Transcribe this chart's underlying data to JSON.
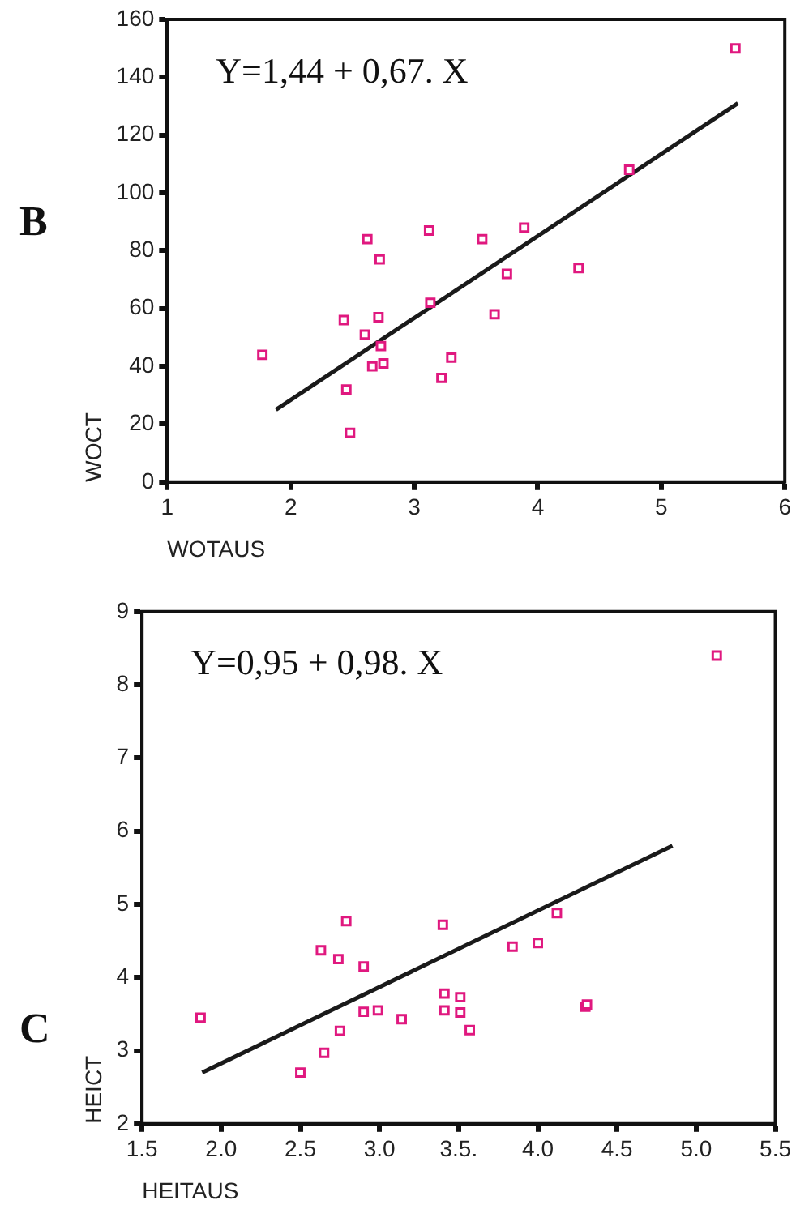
{
  "chart_data": [
    {
      "type": "scatter",
      "title": "B",
      "xlabel": "WOTAUS",
      "ylabel": "WOCT",
      "annotations": [
        "Y=1,44 + 0,67. X"
      ],
      "xlim": [
        1,
        6
      ],
      "xticks": [
        1,
        2,
        3,
        4,
        5,
        6
      ],
      "ylim": [
        0,
        160
      ],
      "yticks": [
        0,
        20,
        40,
        60,
        80,
        100,
        120,
        140,
        160
      ],
      "grid": false,
      "legend": false,
      "series": [
        {
          "color": "#e0187f",
          "marker": "square",
          "x": [
            1.77,
            2.43,
            2.45,
            2.48,
            2.6,
            2.62,
            2.66,
            2.71,
            2.72,
            2.73,
            2.75,
            3.12,
            3.13,
            3.22,
            3.3,
            3.55,
            3.65,
            3.75,
            3.89,
            4.33,
            4.74,
            5.6
          ],
          "values": [
            44,
            56,
            32,
            17,
            51,
            84,
            40,
            57,
            77,
            47,
            41,
            87,
            62,
            36,
            43,
            84,
            58,
            72,
            88,
            74,
            108,
            150
          ]
        },
        {
          "type": "line",
          "color": "#1a1a1a",
          "marker": "none",
          "line_style": "solid",
          "x": [
            1.88,
            5.62
          ],
          "values": [
            25,
            131
          ]
        }
      ]
    },
    {
      "type": "scatter",
      "title": "C",
      "xlabel": "HEITAUS",
      "ylabel": "HEICT",
      "annotations": [
        "Y=0,95 + 0,98. X"
      ],
      "xlim": [
        1.5,
        5.5
      ],
      "xticks": [
        {
          "value": 1.5,
          "label": "1.5"
        },
        {
          "value": 2,
          "label": "2.0"
        },
        {
          "value": 2.5,
          "label": "2.5"
        },
        {
          "value": 3,
          "label": "3.0"
        },
        {
          "value": 3.5,
          "label": "3.5."
        },
        {
          "value": 4,
          "label": "4.0"
        },
        {
          "value": 4.5,
          "label": "4.5"
        },
        {
          "value": 5,
          "label": "5.0"
        },
        {
          "value": 5.5,
          "label": "5.5"
        }
      ],
      "ylim": [
        2,
        9
      ],
      "yticks": [
        2,
        3,
        4,
        5,
        6,
        7,
        8,
        9
      ],
      "grid": false,
      "legend": false,
      "series": [
        {
          "color": "#e0187f",
          "marker": "square",
          "x": [
            1.87,
            2.5,
            2.65,
            2.63,
            2.75,
            2.74,
            2.79,
            2.9,
            2.9,
            2.99,
            3.14,
            3.4,
            3.41,
            3.41,
            3.51,
            3.51,
            3.57,
            3.84,
            4.0,
            4.12,
            4.3,
            4.31,
            5.13
          ],
          "values": [
            3.45,
            2.7,
            2.97,
            4.37,
            3.27,
            4.25,
            4.77,
            3.53,
            4.15,
            3.55,
            3.43,
            4.72,
            3.55,
            3.78,
            3.52,
            3.73,
            3.28,
            4.42,
            4.47,
            4.88,
            3.6,
            3.63,
            8.4
          ]
        },
        {
          "type": "line",
          "color": "#1a1a1a",
          "marker": "none",
          "line_style": "solid",
          "x": [
            1.88,
            4.85
          ],
          "values": [
            2.7,
            5.8
          ]
        }
      ]
    }
  ]
}
